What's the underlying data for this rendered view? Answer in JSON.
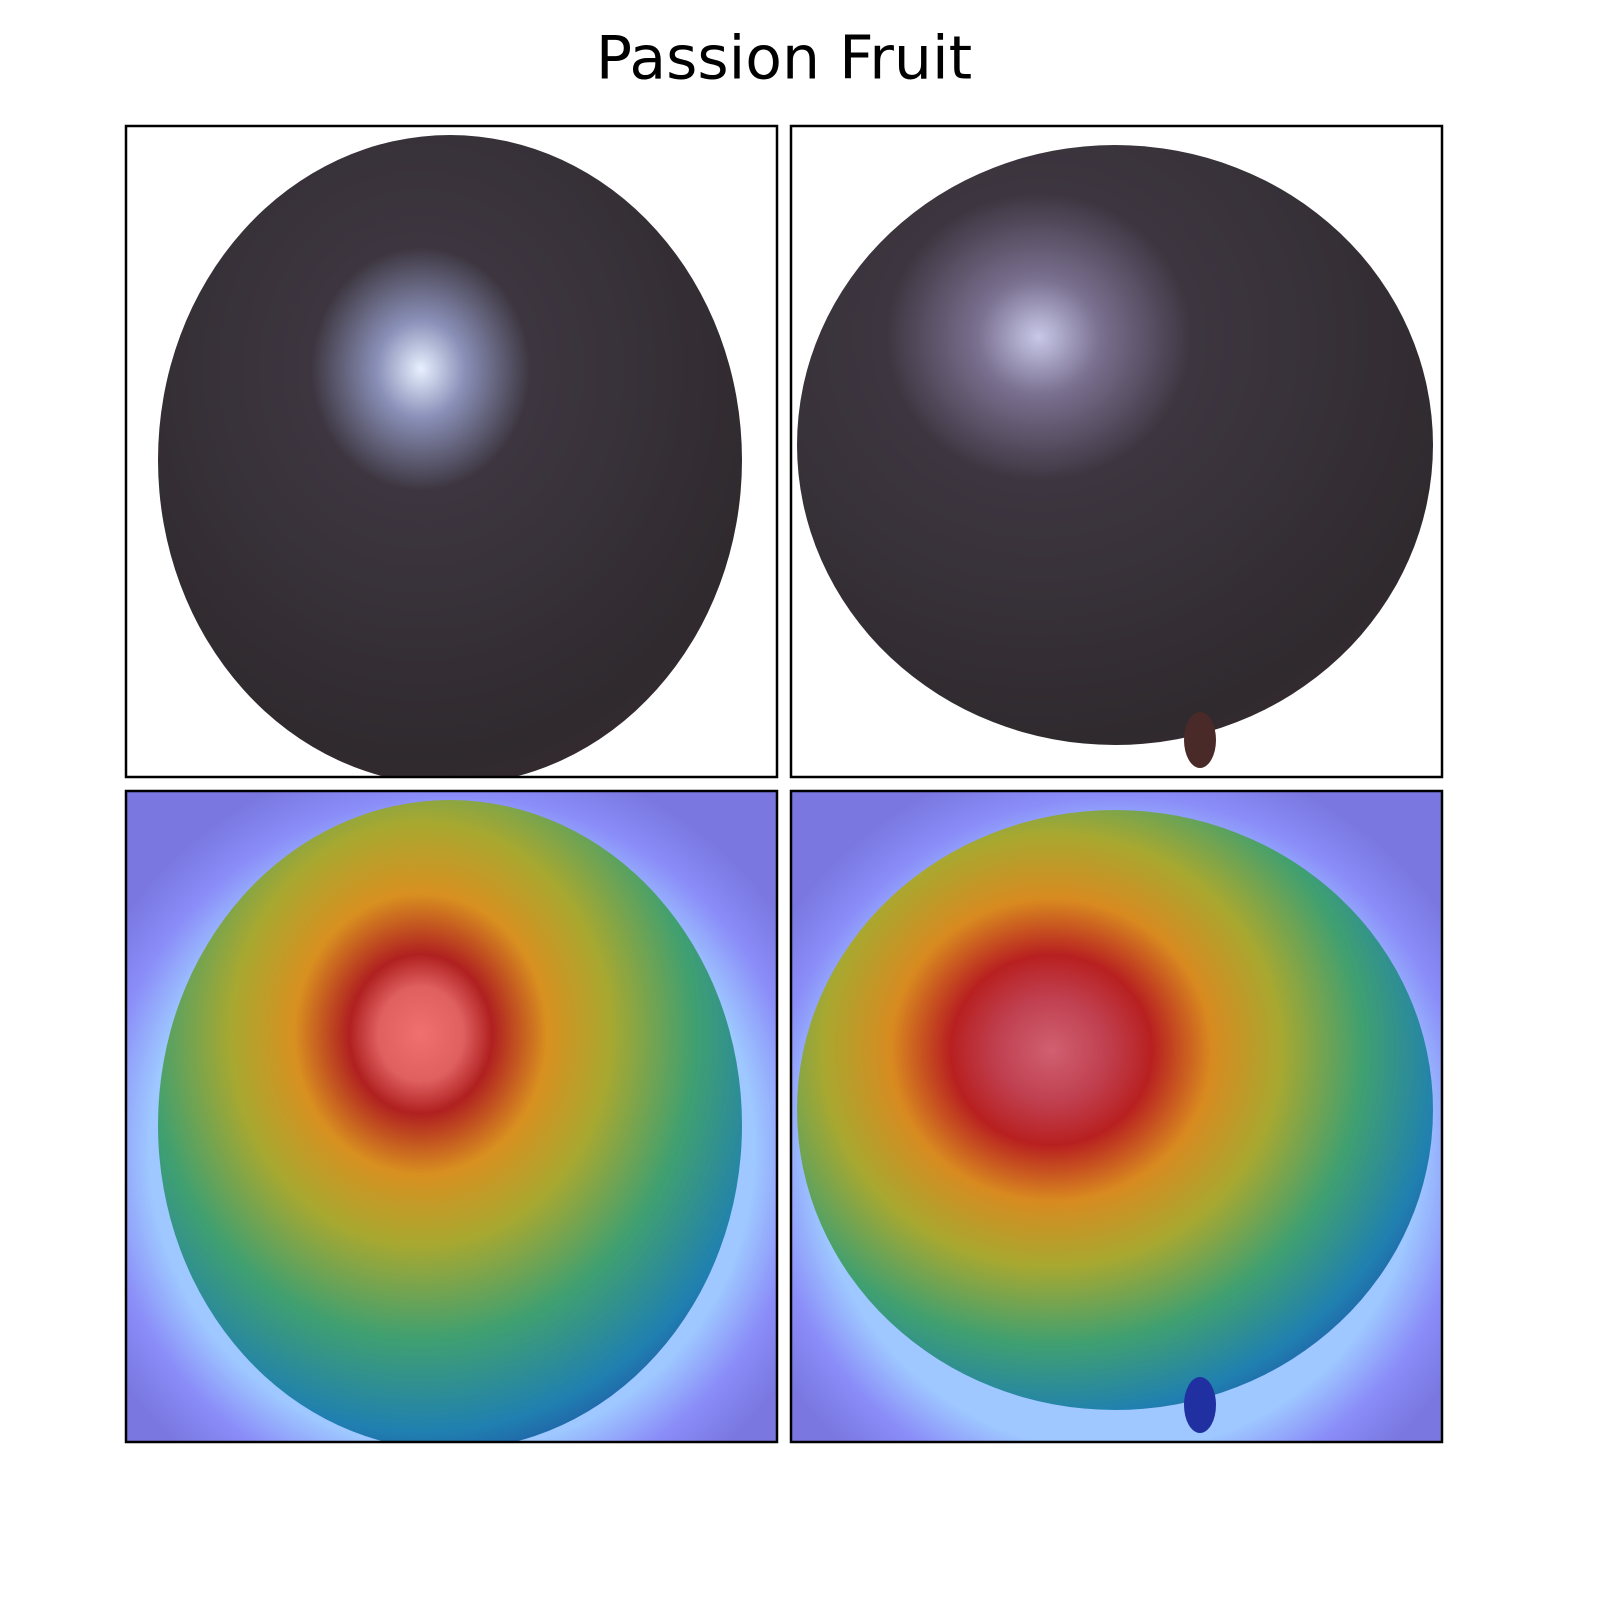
{
  "title": "Passion Fruit"
}
